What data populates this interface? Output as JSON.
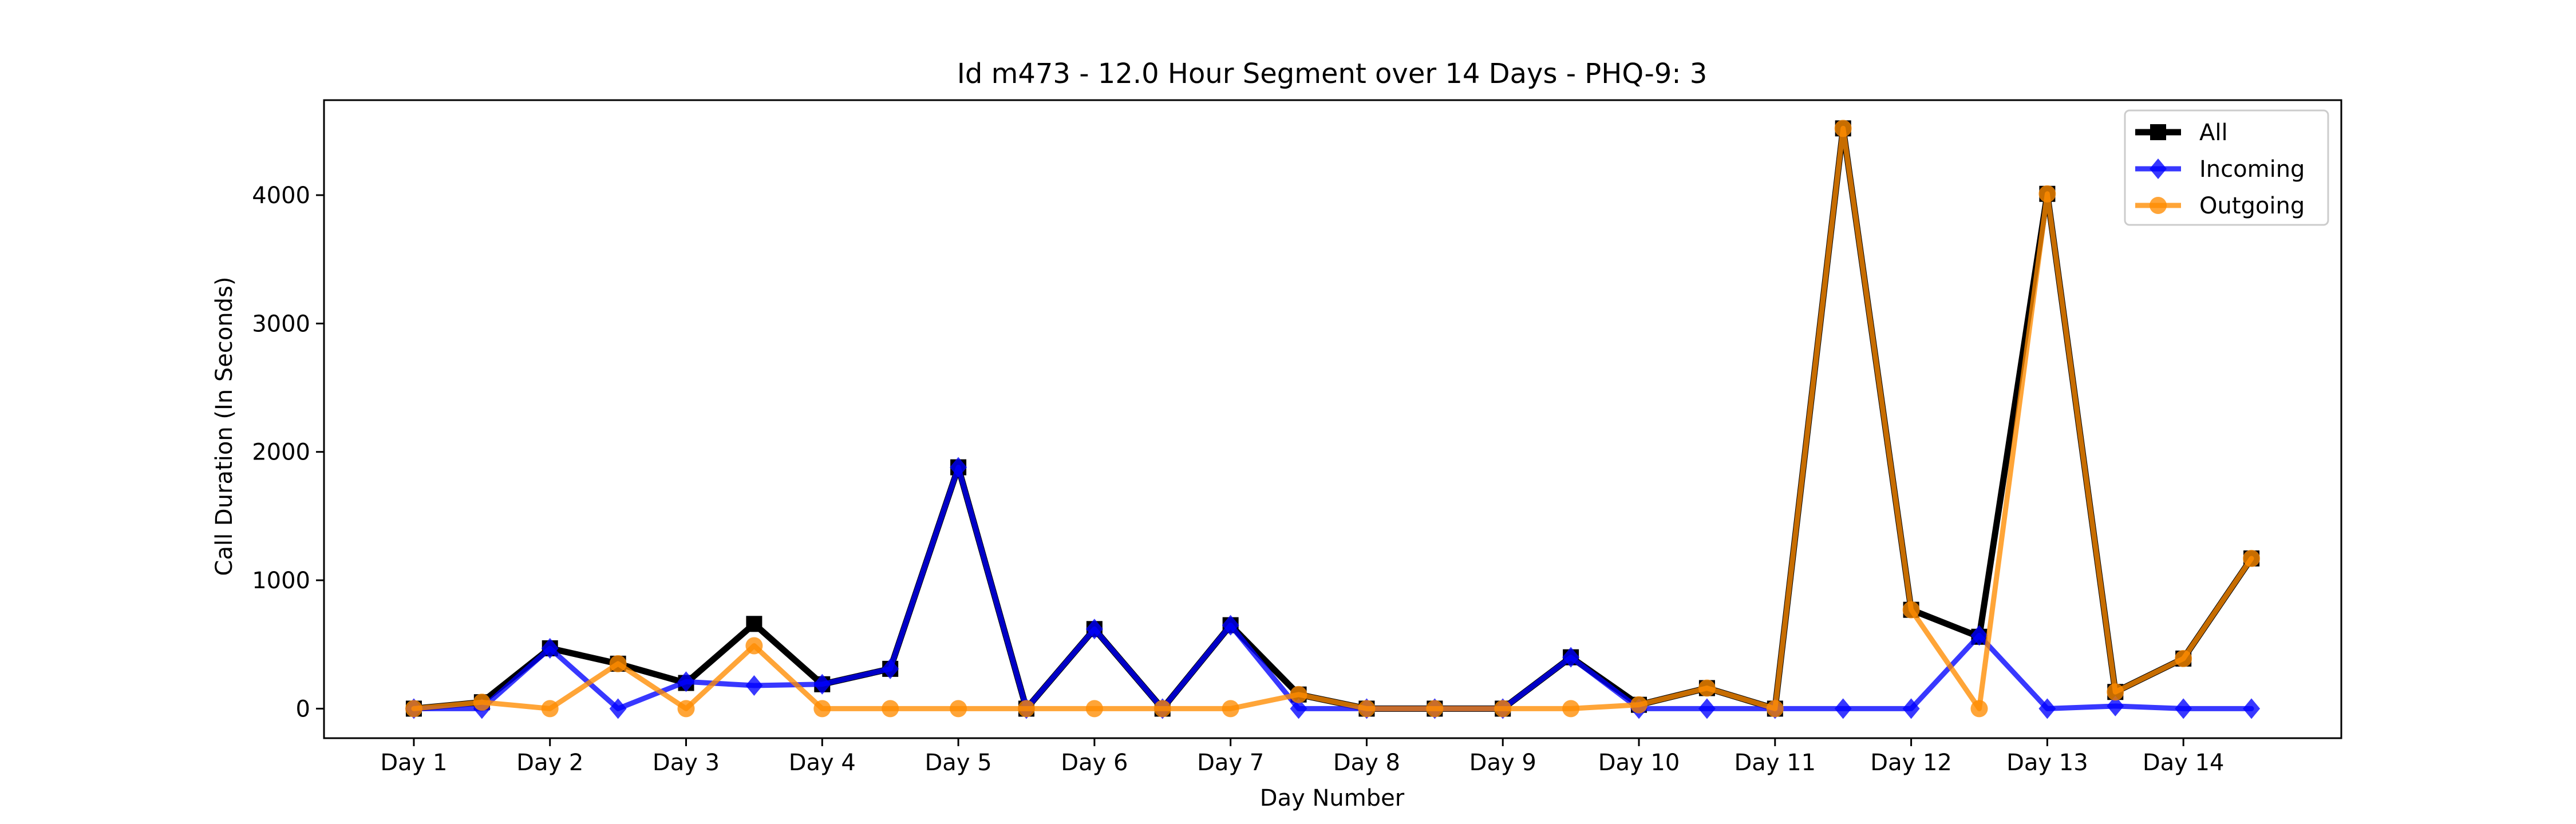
{
  "chart_data": {
    "type": "line",
    "title": "Id m473 - 12.0 Hour Segment over 14 Days - PHQ-9: 3",
    "xlabel": "Day Number",
    "ylabel": "Call Duration (In Seconds)",
    "x_tick_labels": [
      "Day 1",
      "Day 2",
      "Day 3",
      "Day 4",
      "Day 5",
      "Day 6",
      "Day 7",
      "Day 8",
      "Day 9",
      "Day 10",
      "Day 11",
      "Day 12",
      "Day 13",
      "Day 14"
    ],
    "x": [
      1,
      1.5,
      2,
      2.5,
      3,
      3.5,
      4,
      4.5,
      5,
      5.5,
      6,
      6.5,
      7,
      7.5,
      8,
      8.5,
      9,
      9.5,
      10,
      10.5,
      11,
      11.5,
      12,
      12.5,
      13,
      13.5,
      14,
      14.5
    ],
    "xlim": [
      0.34,
      15.16
    ],
    "ylim": [
      -230,
      4740
    ],
    "y_ticks": [
      0,
      1000,
      2000,
      3000,
      4000
    ],
    "grid": false,
    "legend_position": "top-right",
    "series": [
      {
        "name": "All",
        "color": "#000000",
        "marker": "square",
        "values": [
          0,
          50,
          470,
          350,
          200,
          660,
          190,
          310,
          1880,
          0,
          620,
          0,
          650,
          110,
          0,
          0,
          0,
          400,
          30,
          160,
          0,
          4520,
          770,
          560,
          4010,
          130,
          390,
          1170
        ]
      },
      {
        "name": "Incoming",
        "color": "#0000ff",
        "marker": "diamond",
        "values": [
          0,
          0,
          470,
          0,
          210,
          180,
          190,
          310,
          1880,
          0,
          620,
          0,
          650,
          0,
          0,
          0,
          0,
          400,
          0,
          0,
          0,
          0,
          0,
          570,
          0,
          20,
          0,
          0
        ]
      },
      {
        "name": "Outgoing",
        "color": "#ff8c00",
        "marker": "circle",
        "values": [
          0,
          50,
          0,
          350,
          0,
          490,
          0,
          0,
          0,
          0,
          0,
          0,
          0,
          110,
          0,
          0,
          0,
          0,
          30,
          160,
          0,
          4520,
          770,
          0,
          4010,
          130,
          390,
          1170
        ]
      }
    ]
  }
}
